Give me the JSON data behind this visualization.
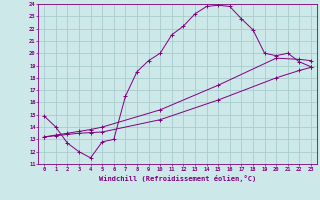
{
  "xlabel": "Windchill (Refroidissement éolien,°C)",
  "ylabel": "",
  "bg_color": "#cce8e8",
  "line_color": "#800080",
  "grid_color": "#aacccc",
  "xlim": [
    -0.5,
    23.5
  ],
  "ylim": [
    11,
    24
  ],
  "xticks": [
    0,
    1,
    2,
    3,
    4,
    5,
    6,
    7,
    8,
    9,
    10,
    11,
    12,
    13,
    14,
    15,
    16,
    17,
    18,
    19,
    20,
    21,
    22,
    23
  ],
  "yticks": [
    11,
    12,
    13,
    14,
    15,
    16,
    17,
    18,
    19,
    20,
    21,
    22,
    23,
    24
  ],
  "line1_x": [
    0,
    1,
    2,
    3,
    4,
    5,
    6,
    7,
    8,
    9,
    10,
    11,
    12,
    13,
    14,
    15,
    16,
    17,
    18,
    19,
    20,
    21,
    22,
    23
  ],
  "line1_y": [
    14.9,
    14.0,
    12.7,
    12.0,
    11.5,
    12.8,
    13.0,
    16.5,
    18.5,
    19.4,
    20.0,
    21.5,
    22.2,
    23.2,
    23.8,
    23.9,
    23.8,
    22.8,
    21.9,
    20.0,
    19.8,
    20.0,
    19.3,
    18.9
  ],
  "line2_x": [
    0,
    1,
    2,
    3,
    4,
    5,
    10,
    15,
    20,
    22,
    23
  ],
  "line2_y": [
    13.2,
    13.3,
    13.4,
    13.5,
    13.55,
    13.6,
    14.6,
    16.2,
    18.0,
    18.6,
    18.85
  ],
  "line3_x": [
    0,
    1,
    2,
    3,
    4,
    5,
    10,
    15,
    20,
    22,
    23
  ],
  "line3_y": [
    13.2,
    13.35,
    13.5,
    13.65,
    13.8,
    14.0,
    15.4,
    17.4,
    19.6,
    19.5,
    19.4
  ]
}
